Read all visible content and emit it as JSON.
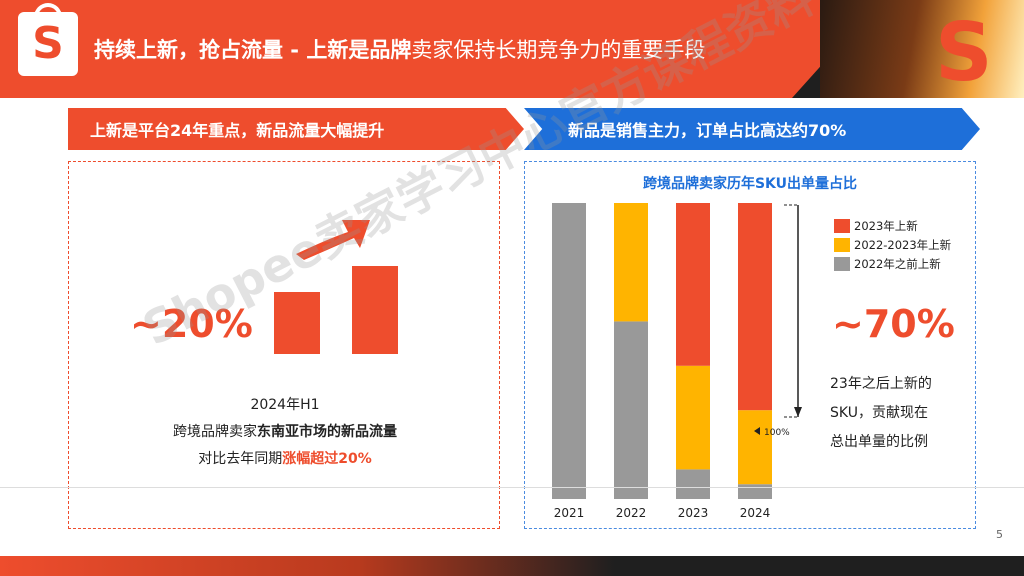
{
  "header": {
    "title_part1": "持续上新，抢占流量 - ",
    "title_part2_bold": "上新是品牌",
    "title_part3": "卖家保持长期竞争力的重要手段",
    "logo_letter": "S"
  },
  "left_panel": {
    "banner": "上新是平台24年重点，新品流量大幅提升",
    "big_percent": "~20%",
    "desc_line1": "2024年H1",
    "desc_line2_a": "跨境品牌卖家",
    "desc_line2_b": "东南亚市场的",
    "desc_line2_c": "新品流量",
    "desc_line3_a": "对比去年同期",
    "desc_line3_b": "涨幅超过20%"
  },
  "right_panel": {
    "banner": "新品是销售主力，订单占比高达约70%",
    "big_percent": "~70%",
    "text_line1": "23年之后上新的",
    "text_line2": "SKU，贡献现在",
    "text_line3": "总出单量的比例"
  },
  "watermark": "Shopee卖家学习中心官方课程资料",
  "page_number": "5",
  "colors": {
    "orange": "#ee4d2d",
    "yellow": "#ffb400",
    "gray": "#999999",
    "blue": "#1e6fd9"
  },
  "chart_data": {
    "type": "bar",
    "stacked": true,
    "normalized": true,
    "title": "跨境品牌卖家历年SKU出单量占比",
    "categories": [
      "2021",
      "2022",
      "2023",
      "2024"
    ],
    "series": [
      {
        "name": "2022年之前上新",
        "color": "#999999",
        "values": [
          100,
          60,
          10,
          5
        ]
      },
      {
        "name": "2022-2023年上新",
        "color": "#ffb400",
        "values": [
          0,
          40,
          35,
          25
        ]
      },
      {
        "name": "2023年上新",
        "color": "#ee4d2d",
        "values": [
          0,
          0,
          55,
          70
        ]
      }
    ],
    "ylim": [
      0,
      100
    ],
    "annotations": [
      "100%"
    ],
    "legend_position": "right"
  }
}
